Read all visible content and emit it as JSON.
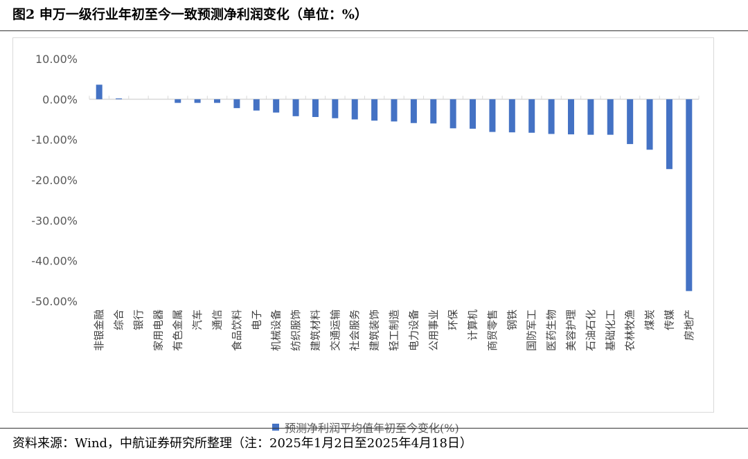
{
  "figure": {
    "title": "图2  申万一级行业年初至今一致预测净利润变化（单位：%）",
    "source": "资料来源：Wind，中航证券研究所整理（注：2025年1月2日至2025年4月18日）"
  },
  "colors": {
    "bar": "#4472c4",
    "axis": "#d9d9d9",
    "text": "#595959"
  },
  "chart_data": {
    "type": "bar",
    "categories": [
      "非银金融",
      "综合",
      "银行",
      "家用电器",
      "有色金属",
      "汽车",
      "通信",
      "食品饮料",
      "电子",
      "机械设备",
      "纺织服饰",
      "建筑材料",
      "交通运输",
      "社会服务",
      "建筑装饰",
      "轻工制造",
      "电力设备",
      "公用事业",
      "环保",
      "计算机",
      "商贸零售",
      "钢铁",
      "国防军工",
      "医药生物",
      "美容护理",
      "石油石化",
      "基础化工",
      "农林牧渔",
      "煤炭",
      "传媒",
      "房地产"
    ],
    "series": [
      {
        "name": "预测净利润平均值年初至今变化(%)",
        "values": [
          3.6,
          0.2,
          0.0,
          0.0,
          -0.9,
          -0.9,
          -0.9,
          -2.2,
          -2.8,
          -3.3,
          -4.2,
          -4.4,
          -4.7,
          -5.0,
          -5.3,
          -5.5,
          -5.9,
          -6.0,
          -7.2,
          -7.3,
          -8.1,
          -8.2,
          -8.3,
          -8.6,
          -8.7,
          -8.8,
          -8.8,
          -11.1,
          -12.5,
          -17.3,
          -47.5
        ]
      }
    ],
    "yticks": [
      "10.00%",
      "0.00%",
      "-10.00%",
      "-20.00%",
      "-30.00%",
      "-40.00%",
      "-50.00%"
    ],
    "ylim": [
      -50,
      10
    ],
    "grid": false,
    "legend_position": "bottom"
  }
}
